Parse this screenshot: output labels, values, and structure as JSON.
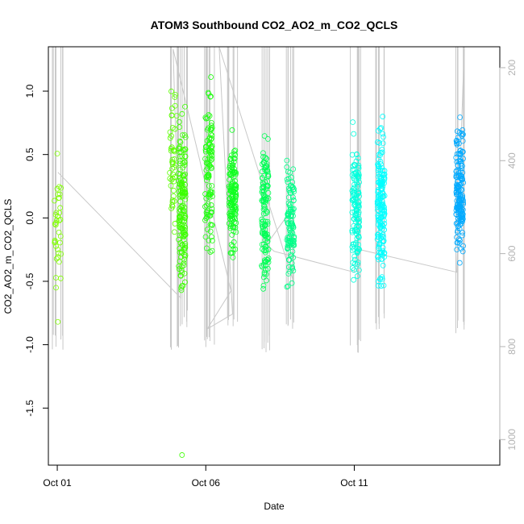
{
  "chart_data": {
    "type": "scatter",
    "title": "ATOM3 Southbound CO2_AO2_m_CO2_QCLS",
    "xlabel": "Date",
    "ylabel": "CO2_AO2_m_CO2_QCLS",
    "x_unit": "day of October (2016-like calendar), fractional",
    "xlim": [
      0.7,
      15.9
    ],
    "ylim": [
      -1.95,
      1.35
    ],
    "y_right_lim": [
      1055,
      155
    ],
    "x_ticks": [
      {
        "value": 1,
        "label": "Oct 01"
      },
      {
        "value": 6,
        "label": "Oct 06"
      },
      {
        "value": 11,
        "label": "Oct 11"
      }
    ],
    "y_ticks": [
      {
        "value": 1.0,
        "label": "1.0"
      },
      {
        "value": 0.5,
        "label": "0.5"
      },
      {
        "value": 0.0,
        "label": "0.0"
      },
      {
        "value": -0.5,
        "label": "-0.5"
      },
      {
        "value": -1.0,
        "label": "-1.0"
      },
      {
        "value": -1.5,
        "label": "-1.5"
      }
    ],
    "y_right_ticks": [
      {
        "value": 200,
        "label": "200"
      },
      {
        "value": 400,
        "label": "400"
      },
      {
        "value": 600,
        "label": "600"
      },
      {
        "value": 800,
        "label": "800"
      },
      {
        "value": 1000,
        "label": "1000"
      }
    ],
    "grid": false,
    "legend": "none",
    "groups": [
      {
        "x": 1.02,
        "color": "#80ff00",
        "y_range": [
          -0.85,
          0.75
        ],
        "count": 35,
        "outliers": [
          -0.82,
          -0.31
        ]
      },
      {
        "x": 4.9,
        "color": "#5cff00",
        "y_range": [
          -0.32,
          1.25
        ],
        "count": 45,
        "outliers": []
      },
      {
        "x": 5.2,
        "color": "#3cff00",
        "y_range": [
          -0.85,
          1.05
        ],
        "count": 160,
        "outliers": [
          -1.87
        ]
      },
      {
        "x": 6.1,
        "color": "#20ff10",
        "y_range": [
          -0.48,
          1.25
        ],
        "count": 110,
        "outliers": []
      },
      {
        "x": 6.9,
        "color": "#10ff20",
        "y_range": [
          -0.42,
          0.78
        ],
        "count": 140,
        "outliers": []
      },
      {
        "x": 8.0,
        "color": "#00ff55",
        "y_range": [
          -0.8,
          0.83
        ],
        "count": 130,
        "outliers": []
      },
      {
        "x": 8.85,
        "color": "#00ff88",
        "y_range": [
          -0.68,
          0.58
        ],
        "count": 110,
        "outliers": []
      },
      {
        "x": 11.05,
        "color": "#00ffdd",
        "y_range": [
          -0.72,
          0.82
        ],
        "count": 130,
        "outliers": []
      },
      {
        "x": 11.9,
        "color": "#00ffff",
        "y_range": [
          -0.75,
          0.92
        ],
        "count": 170,
        "outliers": []
      },
      {
        "x": 14.55,
        "color": "#00aaff",
        "y_range": [
          -0.5,
          0.9
        ],
        "count": 170,
        "outliers": []
      }
    ],
    "altitude_profiles": [
      {
        "x": 1.02,
        "top": 155,
        "bottom": 808
      },
      {
        "x": 4.9,
        "top": 155,
        "bottom": 808
      },
      {
        "x": 5.2,
        "top": 155,
        "bottom": 760
      },
      {
        "x": 6.1,
        "top": 155,
        "bottom": 808
      },
      {
        "x": 6.9,
        "top": 155,
        "bottom": 760
      },
      {
        "x": 8.0,
        "top": 155,
        "bottom": 815
      },
      {
        "x": 8.85,
        "top": 155,
        "bottom": 770
      },
      {
        "x": 11.05,
        "top": 155,
        "bottom": 815
      },
      {
        "x": 11.9,
        "top": 155,
        "bottom": 768
      },
      {
        "x": 14.55,
        "top": 155,
        "bottom": 772
      }
    ],
    "altitude_path": [
      [
        1.02,
        425
      ],
      [
        5.15,
        695
      ],
      [
        4.9,
        160
      ],
      [
        6.85,
        680
      ],
      [
        6.05,
        762
      ],
      [
        6.9,
        730
      ],
      [
        6.45,
        155
      ],
      [
        8.95,
        660
      ],
      [
        8.95,
        500
      ],
      [
        8.05,
        580
      ],
      [
        8.3,
        595
      ],
      [
        11.0,
        640
      ],
      [
        11.1,
        590
      ],
      [
        14.45,
        640
      ],
      [
        14.7,
        160
      ]
    ]
  }
}
